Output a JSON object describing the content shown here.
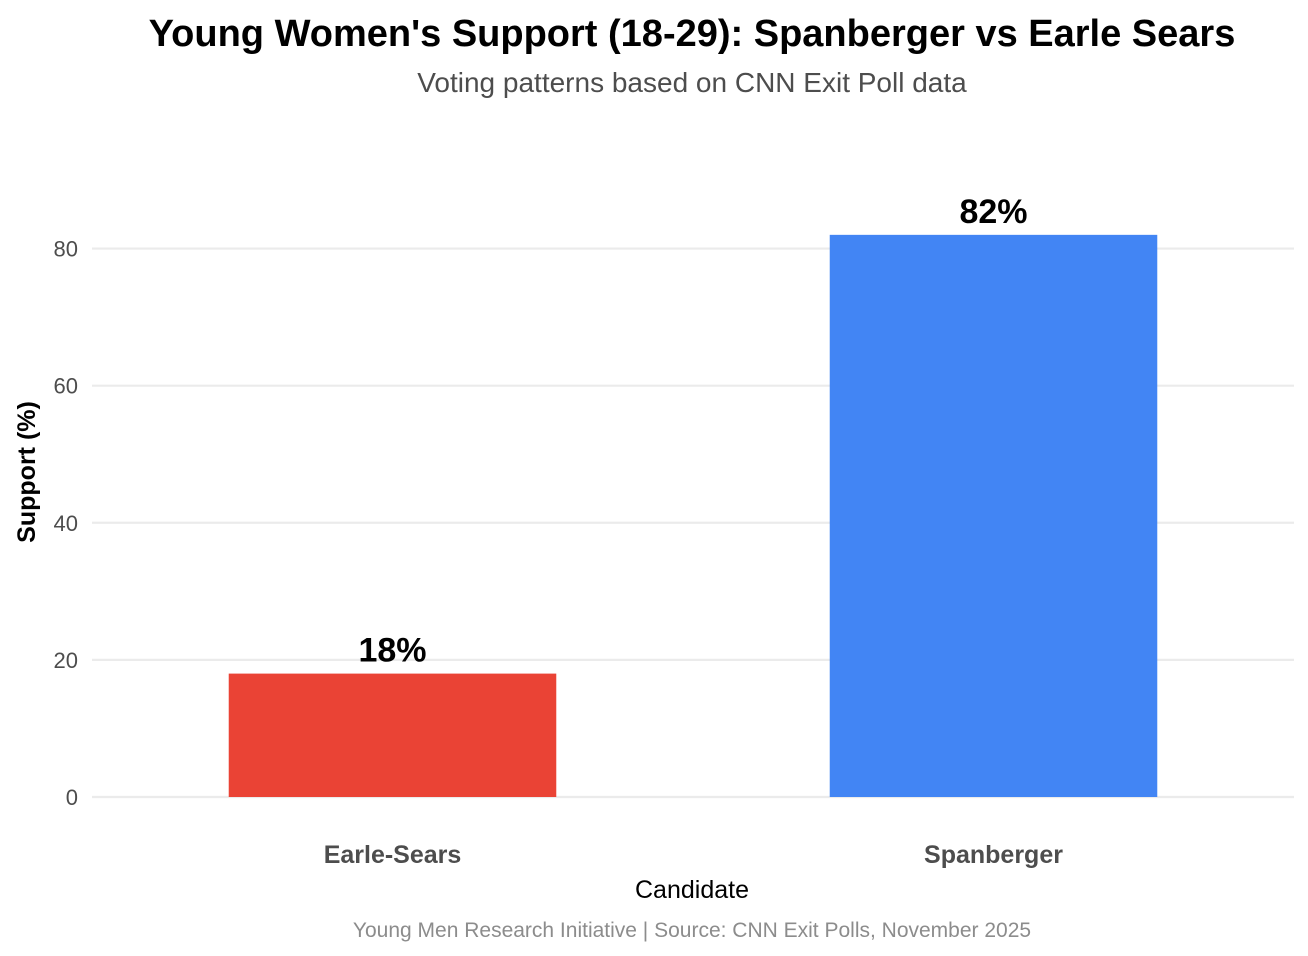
{
  "chart_data": {
    "type": "bar",
    "title": "Young Women's Support (18-29): Spanberger vs Earle Sears",
    "subtitle": "Voting patterns based on CNN Exit Poll data",
    "xlabel": "Candidate",
    "ylabel": "Support (%)",
    "categories": [
      "Earle-Sears",
      "Spanberger"
    ],
    "values": [
      18,
      82
    ],
    "data_labels": [
      "18%",
      "82%"
    ],
    "colors": [
      "#EA4335",
      "#4285F4"
    ],
    "ylim": [
      0,
      90
    ],
    "yticks": [
      0,
      20,
      40,
      60,
      80
    ],
    "ytick_labels": [
      "0",
      "20",
      "40",
      "60",
      "80"
    ],
    "grid": "horizontal",
    "legend": "none",
    "caption": "Young Men Research Initiative | Source: CNN Exit Polls, November 2025"
  }
}
